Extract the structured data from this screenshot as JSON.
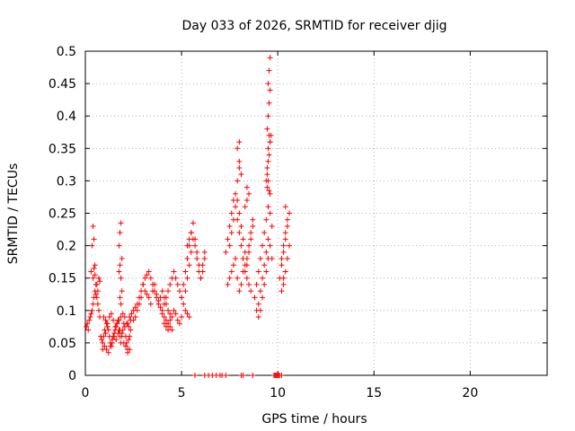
{
  "chart_data": {
    "type": "scatter",
    "title": "Day 033 of 2026, SRMTID for receiver djig",
    "xlabel": "GPS time / hours",
    "ylabel": "SRMTID / TECUs",
    "xlim": [
      0,
      24
    ],
    "ylim": [
      0,
      0.5
    ],
    "xticks": [
      0,
      5,
      10,
      15,
      20
    ],
    "xtick_labels": [
      "0",
      "5",
      "10",
      "15",
      "20"
    ],
    "yticks": [
      0,
      0.05,
      0.1,
      0.15,
      0.2,
      0.25,
      0.3,
      0.35,
      0.4,
      0.45,
      0.5
    ],
    "ytick_labels": [
      "0",
      "0.05",
      "0.1",
      "0.15",
      "0.2",
      "0.25",
      "0.3",
      "0.35",
      "0.4",
      "0.45",
      "0.5"
    ],
    "grid": true,
    "marker": "+",
    "color": "#ff0000",
    "series": [
      {
        "name": "SRMTID",
        "x": [
          0.05,
          0.1,
          0.15,
          0.2,
          0.25,
          0.3,
          0.35,
          0.4,
          0.45,
          0.5,
          0.55,
          0.6,
          0.65,
          0.7,
          0.75,
          0.3,
          0.35,
          0.4,
          0.45,
          0.5,
          0.4,
          0.45,
          0.5,
          0.55,
          0.6,
          0.65,
          0.7,
          0.75,
          0.8,
          0.85,
          0.9,
          0.95,
          1.0,
          1.05,
          1.1,
          1.15,
          1.2,
          1.25,
          1.3,
          1.35,
          1.4,
          1.45,
          1.5,
          1.55,
          1.6,
          1.65,
          1.7,
          1.75,
          1.8,
          1.85,
          1.9,
          1.95,
          2.0,
          2.05,
          2.1,
          2.15,
          2.2,
          2.25,
          2.3,
          2.35,
          0.9,
          1.0,
          1.1,
          1.2,
          1.3,
          1.4,
          1.5,
          1.6,
          1.7,
          1.8,
          1.9,
          2.0,
          2.1,
          2.2,
          2.3,
          0.95,
          1.05,
          1.15,
          1.25,
          1.35,
          1.45,
          1.55,
          1.65,
          1.75,
          1.85,
          1.95,
          2.05,
          2.15,
          2.25,
          2.35,
          1.75,
          1.8,
          1.85,
          1.9,
          1.75,
          1.8,
          1.85,
          1.8,
          1.85,
          1.9,
          2.2,
          2.3,
          2.4,
          2.5,
          2.6,
          2.7,
          2.8,
          2.9,
          3.0,
          2.5,
          2.6,
          2.7,
          2.8,
          2.9,
          3.0,
          3.1,
          3.2,
          3.3,
          3.4,
          3.5,
          3.6,
          3.7,
          3.8,
          3.9,
          4.0,
          4.1,
          4.2,
          4.3,
          4.4,
          3.1,
          3.2,
          3.3,
          3.4,
          3.5,
          3.6,
          3.7,
          3.8,
          3.9,
          4.0,
          4.1,
          4.2,
          4.3,
          4.4,
          4.5,
          4.0,
          4.1,
          4.2,
          4.3,
          4.4,
          4.5,
          4.6,
          4.7,
          4.8,
          4.9,
          5.0,
          5.1,
          5.2,
          5.3,
          5.4,
          4.1,
          4.2,
          4.3,
          4.4,
          4.5,
          4.6,
          4.7,
          4.8,
          4.9,
          5.0,
          5.0,
          5.1,
          5.2,
          5.3,
          5.4,
          5.5,
          5.6,
          5.7,
          5.8,
          5.9,
          6.0,
          6.1,
          6.2,
          5.2,
          5.3,
          5.4,
          5.5,
          5.6,
          5.7,
          5.8,
          5.9,
          6.0,
          6.1,
          6.2,
          5.3,
          5.4,
          5.5,
          7.3,
          7.4,
          7.5,
          7.6,
          7.7,
          7.8,
          7.9,
          8.0,
          8.1,
          8.2,
          8.3,
          8.4,
          8.5,
          8.6,
          8.7,
          7.4,
          7.5,
          7.6,
          7.7,
          7.8,
          7.9,
          8.0,
          8.1,
          8.2,
          8.3,
          8.4,
          8.5,
          8.6,
          7.5,
          7.6,
          7.7,
          7.8,
          7.9,
          8.0,
          8.1,
          8.2,
          8.3,
          8.4,
          8.5,
          8.6,
          8.7,
          7.9,
          8.0,
          8.0,
          7.9,
          8.0,
          8.1,
          8.4,
          8.5,
          8.3,
          8.4,
          8.8,
          8.9,
          9.0,
          9.1,
          9.2,
          9.3,
          9.4,
          9.5,
          9.6,
          9.7,
          8.9,
          9.0,
          9.1,
          9.2,
          9.3,
          9.4,
          9.5,
          9.6,
          9.7,
          9.0,
          9.1,
          9.2,
          9.3,
          9.4,
          9.5,
          9.4,
          9.45,
          9.5,
          9.55,
          9.6,
          9.45,
          9.5,
          9.55,
          9.6,
          9.5,
          9.55,
          9.6,
          9.45,
          9.5,
          9.55,
          9.6,
          9.65,
          9.45,
          9.5,
          9.55,
          9.6,
          10.1,
          10.2,
          10.3,
          10.4,
          10.5,
          10.6,
          10.2,
          10.3,
          10.4,
          10.5,
          10.3,
          10.4,
          10.5,
          10.6,
          10.2,
          10.3,
          10.4,
          5.7,
          6.2,
          6.4,
          6.6,
          6.8,
          7.0,
          7.1,
          7.3,
          8.1,
          8.2,
          8.7,
          9.8,
          9.9,
          10.0,
          10.1,
          10.2,
          9.85,
          9.95,
          10.05
        ],
        "y": [
          0.075,
          0.08,
          0.07,
          0.085,
          0.09,
          0.095,
          0.1,
          0.11,
          0.12,
          0.13,
          0.125,
          0.14,
          0.11,
          0.1,
          0.09,
          0.16,
          0.2,
          0.23,
          0.21,
          0.17,
          0.15,
          0.165,
          0.155,
          0.14,
          0.12,
          0.13,
          0.15,
          0.145,
          0.06,
          0.055,
          0.05,
          0.06,
          0.07,
          0.065,
          0.08,
          0.075,
          0.07,
          0.06,
          0.05,
          0.045,
          0.055,
          0.06,
          0.065,
          0.07,
          0.075,
          0.08,
          0.085,
          0.07,
          0.06,
          0.05,
          0.065,
          0.07,
          0.08,
          0.075,
          0.06,
          0.05,
          0.04,
          0.055,
          0.06,
          0.07,
          0.04,
          0.045,
          0.04,
          0.035,
          0.045,
          0.05,
          0.06,
          0.055,
          0.065,
          0.07,
          0.06,
          0.05,
          0.045,
          0.035,
          0.04,
          0.09,
          0.085,
          0.08,
          0.09,
          0.095,
          0.085,
          0.075,
          0.08,
          0.085,
          0.09,
          0.095,
          0.09,
          0.08,
          0.075,
          0.085,
          0.2,
          0.22,
          0.235,
          0.18,
          0.16,
          0.17,
          0.15,
          0.12,
          0.11,
          0.13,
          0.08,
          0.09,
          0.095,
          0.1,
          0.105,
          0.11,
          0.12,
          0.13,
          0.14,
          0.085,
          0.09,
          0.1,
          0.11,
          0.12,
          0.14,
          0.15,
          0.155,
          0.16,
          0.15,
          0.14,
          0.13,
          0.12,
          0.11,
          0.12,
          0.13,
          0.12,
          0.11,
          0.1,
          0.095,
          0.13,
          0.125,
          0.12,
          0.11,
          0.13,
          0.14,
          0.125,
          0.115,
          0.105,
          0.095,
          0.09,
          0.085,
          0.08,
          0.075,
          0.07,
          0.1,
          0.11,
          0.12,
          0.13,
          0.14,
          0.15,
          0.16,
          0.15,
          0.14,
          0.13,
          0.12,
          0.11,
          0.1,
          0.095,
          0.09,
          0.08,
          0.075,
          0.07,
          0.085,
          0.09,
          0.1,
          0.095,
          0.085,
          0.08,
          0.09,
          0.12,
          0.14,
          0.16,
          0.18,
          0.2,
          0.22,
          0.235,
          0.21,
          0.19,
          0.17,
          0.15,
          0.16,
          0.18,
          0.13,
          0.15,
          0.17,
          0.19,
          0.21,
          0.2,
          0.18,
          0.16,
          0.15,
          0.17,
          0.19,
          0.2,
          0.21,
          0.22,
          0.19,
          0.21,
          0.23,
          0.25,
          0.27,
          0.28,
          0.24,
          0.22,
          0.2,
          0.18,
          0.16,
          0.17,
          0.19,
          0.21,
          0.23,
          0.14,
          0.15,
          0.16,
          0.17,
          0.18,
          0.15,
          0.13,
          0.14,
          0.16,
          0.17,
          0.15,
          0.14,
          0.13,
          0.2,
          0.22,
          0.24,
          0.26,
          0.27,
          0.25,
          0.23,
          0.21,
          0.19,
          0.18,
          0.2,
          0.22,
          0.24,
          0.3,
          0.33,
          0.36,
          0.35,
          0.32,
          0.31,
          0.29,
          0.28,
          0.26,
          0.27,
          0.12,
          0.14,
          0.16,
          0.18,
          0.2,
          0.22,
          0.24,
          0.26,
          0.25,
          0.23,
          0.1,
          0.11,
          0.13,
          0.15,
          0.17,
          0.19,
          0.21,
          0.2,
          0.18,
          0.09,
          0.1,
          0.12,
          0.14,
          0.16,
          0.18,
          0.3,
          0.32,
          0.35,
          0.37,
          0.36,
          0.38,
          0.4,
          0.42,
          0.44,
          0.45,
          0.47,
          0.49,
          0.31,
          0.33,
          0.34,
          0.36,
          0.37,
          0.29,
          0.3,
          0.285,
          0.28,
          0.15,
          0.17,
          0.19,
          0.21,
          0.23,
          0.25,
          0.18,
          0.2,
          0.22,
          0.24,
          0.14,
          0.16,
          0.18,
          0.2,
          0.13,
          0.15,
          0.26,
          0,
          0,
          0,
          0,
          0,
          0,
          0,
          0,
          0,
          0,
          0,
          0,
          0,
          0,
          0,
          0,
          0,
          0,
          0
        ]
      }
    ]
  }
}
